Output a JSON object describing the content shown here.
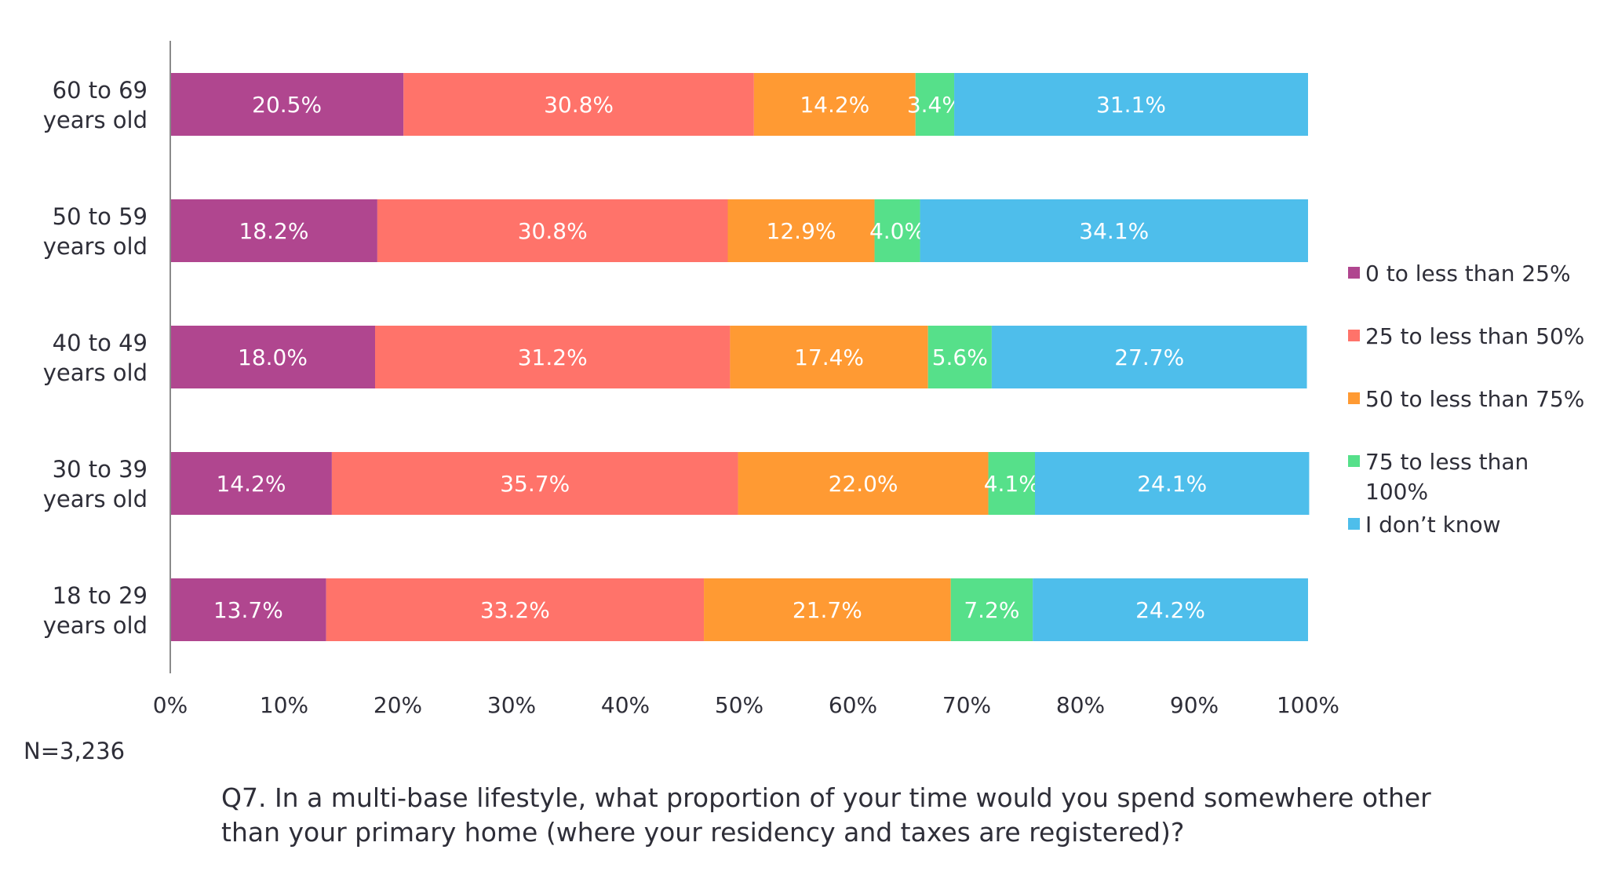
{
  "chart_data": {
    "type": "bar",
    "orientation": "horizontal",
    "stacked": true,
    "categories": [
      "60 to 69 years old",
      "50 to 59 years old",
      "40 to 49 years old",
      "30 to 39 years old",
      "18 to 29 years old"
    ],
    "category_lines": [
      [
        "60 to 69",
        "years old"
      ],
      [
        "50 to 59",
        "years old"
      ],
      [
        "40 to 49",
        "years old"
      ],
      [
        "30 to 39",
        "years old"
      ],
      [
        "18 to 29",
        "years old"
      ]
    ],
    "series": [
      {
        "name": "0 to less than 25%",
        "color": "#b0468f",
        "values": [
          20.5,
          18.2,
          18.0,
          14.2,
          13.7
        ],
        "labels": [
          "20.5%",
          "18.2%",
          "18.0%",
          "14.2%",
          "13.7%"
        ]
      },
      {
        "name": "25 to less than 50%",
        "color": "#ff736a",
        "values": [
          30.8,
          30.8,
          31.2,
          35.7,
          33.2
        ],
        "labels": [
          "30.8%",
          "30.8%",
          "31.2%",
          "35.7%",
          "33.2%"
        ]
      },
      {
        "name": "50 to less than 75%",
        "color": "#ff9a33",
        "values": [
          14.2,
          12.9,
          17.4,
          22.0,
          21.7
        ],
        "labels": [
          "14.2%",
          "12.9%",
          "17.4%",
          "22.0%",
          "21.7%"
        ]
      },
      {
        "name": "75 to less than 100%",
        "color": "#56e08a",
        "values": [
          3.4,
          4.0,
          5.6,
          4.1,
          7.2
        ],
        "labels": [
          "3.4%",
          "4.0%",
          "5.6%",
          "4.1%",
          "7.2%"
        ]
      },
      {
        "name": "I don’t know",
        "color": "#4ebeeb",
        "values": [
          31.1,
          34.1,
          27.7,
          24.1,
          24.2
        ],
        "labels": [
          "31.1%",
          "34.1%",
          "27.7%",
          "24.1%",
          "24.2%"
        ]
      }
    ],
    "xlim": [
      0,
      100
    ],
    "x_ticks": [
      "0%",
      "10%",
      "20%",
      "30%",
      "40%",
      "50%",
      "60%",
      "70%",
      "80%",
      "90%",
      "100%"
    ],
    "grid": false,
    "legend_position": "right"
  },
  "legend": [
    {
      "label_lines": [
        "0 to less than 25%"
      ],
      "color": "#b0468f"
    },
    {
      "label_lines": [
        "25 to less than 50%"
      ],
      "color": "#ff736a"
    },
    {
      "label_lines": [
        "50 to less than 75%"
      ],
      "color": "#ff9a33"
    },
    {
      "label_lines": [
        "75 to less than",
        "100%"
      ],
      "color": "#56e08a"
    },
    {
      "label_lines": [
        "I don’t know"
      ],
      "color": "#4ebeeb"
    }
  ],
  "note": "N=3,236",
  "caption": "Q7. In a multi-base lifestyle, what proportion of your time would you spend somewhere other than your primary home (where your residency and taxes are registered)?"
}
